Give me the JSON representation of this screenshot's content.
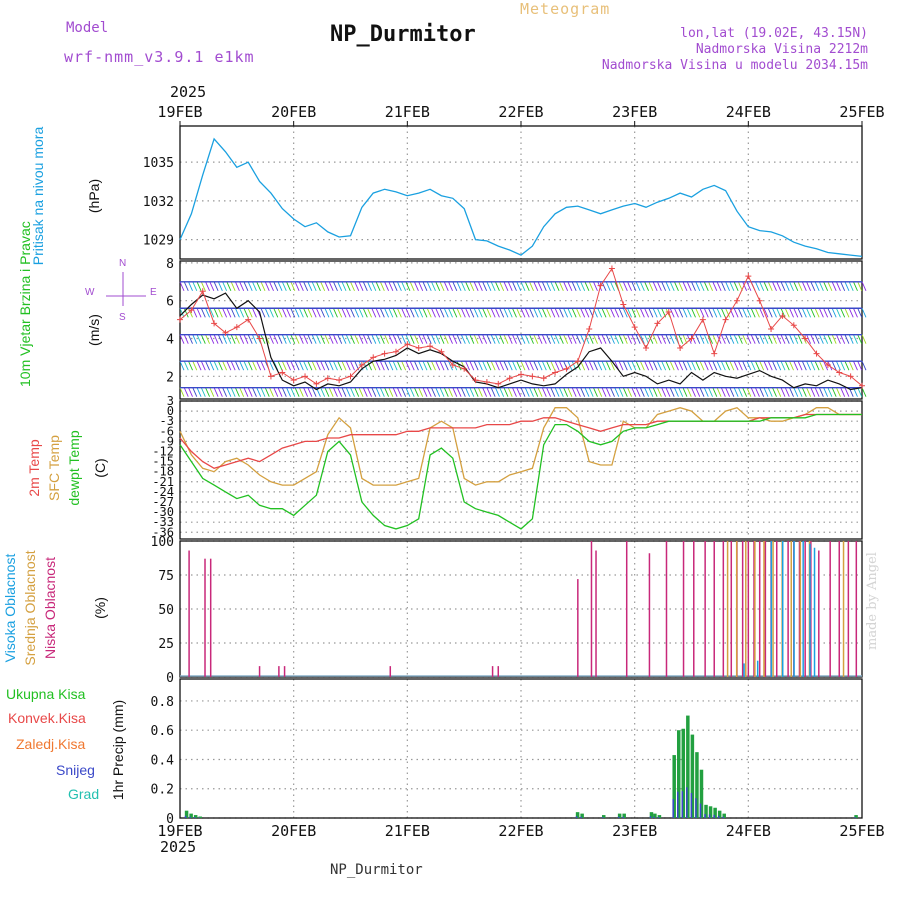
{
  "header": {
    "title": "NP_Durmitor",
    "meteogram": "Meteogram",
    "model_label": "Model",
    "model_name": "wrf-nmm_v3.9.1 e1km",
    "loc_line1": "lon,lat (19.02E, 43.15N)",
    "loc_line2": "Nadmorska Visina 2212m",
    "loc_line3": "Nadmorska Visina u modelu 2034.15m",
    "year_top": "2025",
    "year_bottom": "2025",
    "footer": "NP_Durmitor",
    "credit": "made by Angel"
  },
  "colors": {
    "pressure": "#1aa0e0",
    "temp2m": "#e84848",
    "sfc_temp": "#d4a040",
    "dewpoint": "#22c022",
    "high_cloud": "#1aa0e0",
    "mid_cloud": "#d4a040",
    "low_cloud": "#c8287a",
    "precip_total": "#22a040",
    "snow": "#3a48c8",
    "wind_speed": "#111111",
    "gust": "#e84848",
    "violet": "#a24cd0"
  },
  "chart_data": [
    {
      "type": "line",
      "panel": "pressure",
      "ylabel": "Pritisak na nivou mora",
      "units": "(hPa)",
      "yticks": [
        1029,
        1032,
        1035
      ],
      "ylim": [
        1027.5,
        1037.8
      ],
      "x_categories": [
        "19FEB",
        "20FEB",
        "21FEB",
        "22FEB",
        "23FEB",
        "24FEB",
        "25FEB"
      ],
      "x": [
        0,
        0.1,
        0.2,
        0.3,
        0.4,
        0.5,
        0.6,
        0.7,
        0.8,
        0.9,
        1.0,
        1.1,
        1.2,
        1.3,
        1.4,
        1.5,
        1.6,
        1.7,
        1.8,
        1.9,
        2.0,
        2.1,
        2.2,
        2.3,
        2.4,
        2.5,
        2.6,
        2.7,
        2.8,
        2.9,
        3.0,
        3.1,
        3.2,
        3.3,
        3.4,
        3.5,
        3.6,
        3.7,
        3.8,
        3.9,
        4.0,
        4.1,
        4.2,
        4.3,
        4.4,
        4.5,
        4.6,
        4.7,
        4.8,
        4.9,
        5.0,
        5.1,
        5.2,
        5.3,
        5.4,
        5.5,
        5.6,
        5.7,
        5.8,
        5.9,
        6.0
      ],
      "values": [
        1029,
        1031,
        1034,
        1036.8,
        1035.8,
        1034.6,
        1035,
        1033.5,
        1032.6,
        1031.4,
        1030.6,
        1030.0,
        1030.3,
        1029.6,
        1029.2,
        1029.3,
        1031.5,
        1032.6,
        1032.9,
        1032.7,
        1032.4,
        1032.6,
        1032.9,
        1032.4,
        1032.2,
        1031.4,
        1029.0,
        1028.9,
        1028.5,
        1028.2,
        1027.8,
        1028.5,
        1030.0,
        1031.0,
        1031.5,
        1031.6,
        1031.3,
        1031.0,
        1031.3,
        1031.6,
        1031.8,
        1031.5,
        1031.9,
        1032.2,
        1032.6,
        1032.3,
        1032.9,
        1033.2,
        1032.8,
        1031.2,
        1030.0,
        1029.7,
        1029.6,
        1029.3,
        1028.8,
        1028.5,
        1028.3,
        1028.0,
        1027.9,
        1027.8,
        1027.7
      ]
    },
    {
      "type": "line",
      "panel": "wind",
      "ylabel": "10m Vjetar Brzina i Pravac",
      "units": "(m/s)",
      "compass": {
        "n": "N",
        "s": "S",
        "w": "W",
        "e": "E"
      },
      "yticks": [
        2,
        4,
        6,
        8
      ],
      "ylim": [
        0.8,
        8.1
      ],
      "x": [
        0,
        0.1,
        0.2,
        0.3,
        0.4,
        0.5,
        0.6,
        0.7,
        0.8,
        0.9,
        1.0,
        1.1,
        1.2,
        1.3,
        1.4,
        1.5,
        1.6,
        1.7,
        1.8,
        1.9,
        2.0,
        2.1,
        2.2,
        2.3,
        2.4,
        2.5,
        2.6,
        2.7,
        2.8,
        2.9,
        3.0,
        3.1,
        3.2,
        3.3,
        3.4,
        3.5,
        3.6,
        3.7,
        3.8,
        3.9,
        4.0,
        4.1,
        4.2,
        4.3,
        4.4,
        4.5,
        4.6,
        4.7,
        4.8,
        4.9,
        5.0,
        5.1,
        5.2,
        5.3,
        5.4,
        5.5,
        5.6,
        5.7,
        5.8,
        5.9,
        6.0
      ],
      "series": [
        {
          "role": "speed",
          "values": [
            5.2,
            5.8,
            6.3,
            6.1,
            6.4,
            5.6,
            6.0,
            5.4,
            3.0,
            1.8,
            1.5,
            1.7,
            1.3,
            1.6,
            1.5,
            1.7,
            2.4,
            2.8,
            2.9,
            3.1,
            3.5,
            3.2,
            3.4,
            3.2,
            2.8,
            2.5,
            1.7,
            1.6,
            1.4,
            1.6,
            1.8,
            1.6,
            1.5,
            1.6,
            2.1,
            2.5,
            3.3,
            3.5,
            2.8,
            2.0,
            2.2,
            2.0,
            1.6,
            1.8,
            1.6,
            2.2,
            1.8,
            2.2,
            2.0,
            1.9,
            2.1,
            2.3,
            2.0,
            1.8,
            1.4,
            1.6,
            1.5,
            1.8,
            1.6,
            1.3,
            1.4
          ]
        },
        {
          "role": "gust",
          "values": [
            5.0,
            5.5,
            6.5,
            4.8,
            4.3,
            4.6,
            5.0,
            4.0,
            2.0,
            2.2,
            1.8,
            2.0,
            1.6,
            1.9,
            1.8,
            2.0,
            2.6,
            3.0,
            3.2,
            3.3,
            3.7,
            3.5,
            3.6,
            3.3,
            2.6,
            2.4,
            1.8,
            1.7,
            1.6,
            1.9,
            2.1,
            2.0,
            1.9,
            2.2,
            2.4,
            2.8,
            4.5,
            6.8,
            7.7,
            5.8,
            4.6,
            3.5,
            4.8,
            5.4,
            3.5,
            4.0,
            5.0,
            3.2,
            5.0,
            6.0,
            7.3,
            6.0,
            4.5,
            5.2,
            4.7,
            4.0,
            3.2,
            2.6,
            2.2,
            2.0,
            1.5
          ]
        }
      ]
    },
    {
      "type": "line",
      "panel": "temperature",
      "ylabel1": "2m Temp",
      "ylabel2": "SFC Temp",
      "ylabel3": "dewpt Temp",
      "units": "(C)",
      "yticks": [
        -36,
        -33,
        -30,
        -27,
        -24,
        -21,
        -18,
        -15,
        -12,
        -9,
        -6,
        -3,
        0,
        3
      ],
      "ylim": [
        -38,
        3
      ],
      "x": [
        0,
        0.1,
        0.2,
        0.3,
        0.4,
        0.5,
        0.6,
        0.7,
        0.8,
        0.9,
        1.0,
        1.1,
        1.2,
        1.3,
        1.4,
        1.5,
        1.6,
        1.7,
        1.8,
        1.9,
        2.0,
        2.1,
        2.2,
        2.3,
        2.4,
        2.5,
        2.6,
        2.7,
        2.8,
        2.9,
        3.0,
        3.1,
        3.2,
        3.3,
        3.4,
        3.5,
        3.6,
        3.7,
        3.8,
        3.9,
        4.0,
        4.1,
        4.2,
        4.3,
        4.4,
        4.5,
        4.6,
        4.7,
        4.8,
        4.9,
        5.0,
        5.1,
        5.2,
        5.3,
        5.4,
        5.5,
        5.6,
        5.7,
        5.8,
        5.9,
        6.0
      ],
      "series": [
        {
          "role": "2m",
          "values": [
            -8,
            -12,
            -15,
            -17,
            -16,
            -15,
            -14,
            -15,
            -13,
            -11,
            -10,
            -9,
            -9,
            -8,
            -8,
            -7,
            -7,
            -7,
            -7,
            -7,
            -6,
            -6,
            -5,
            -5,
            -5,
            -5,
            -5,
            -4,
            -4,
            -4,
            -3,
            -3,
            -2,
            -2,
            -3,
            -4,
            -5,
            -6,
            -5,
            -4,
            -4,
            -4,
            -3,
            -3,
            -3,
            -3,
            -3,
            -3,
            -3,
            -3,
            -3,
            -2,
            -2,
            -2,
            -2,
            -1,
            -1,
            -1,
            -1,
            -1,
            -1
          ]
        },
        {
          "role": "sfc",
          "values": [
            -6,
            -13,
            -17,
            -18,
            -15,
            -14,
            -16,
            -19,
            -21,
            -22,
            -22,
            -20,
            -18,
            -7,
            -2,
            -5,
            -20,
            -22,
            -22,
            -22,
            -21,
            -20,
            -5,
            -3,
            -5,
            -20,
            -22,
            -21,
            -21,
            -19,
            -18,
            -17,
            -5,
            1,
            1,
            -2,
            -15,
            -16,
            -16,
            -3,
            -5,
            -5,
            -1,
            0,
            1,
            0,
            -3,
            -3,
            0,
            1,
            -2,
            -2,
            -3,
            -3,
            -2,
            -1,
            1,
            1,
            -1,
            -1,
            -1
          ]
        },
        {
          "role": "dewpt",
          "values": [
            -10,
            -15,
            -20,
            -22,
            -24,
            -26,
            -25,
            -28,
            -29,
            -29,
            -31,
            -28,
            -25,
            -12,
            -9,
            -13,
            -27,
            -31,
            -34,
            -35,
            -34,
            -32,
            -13,
            -11,
            -14,
            -27,
            -29,
            -30,
            -31,
            -33,
            -35,
            -32,
            -10,
            -4,
            -4,
            -6,
            -9,
            -10,
            -9,
            -6,
            -5,
            -5,
            -4,
            -3,
            -3,
            -3,
            -3,
            -3,
            -3,
            -3,
            -3,
            -3,
            -2,
            -2,
            -2,
            -2,
            -1,
            -1,
            -1,
            -1,
            -1
          ]
        }
      ]
    },
    {
      "type": "bar",
      "panel": "clouds",
      "ylabel1": "Visoka Oblacnost",
      "ylabel2": "Srednja Oblacnost",
      "ylabel3": "Niska Oblacnost",
      "units": "(%)",
      "yticks": [
        0,
        25,
        50,
        75,
        100
      ],
      "ylim": [
        0,
        100
      ],
      "low": [
        [
          0.08,
          93
        ],
        [
          0.22,
          87
        ],
        [
          0.27,
          87
        ],
        [
          0.7,
          8
        ],
        [
          0.87,
          8
        ],
        [
          0.92,
          8
        ],
        [
          1.85,
          8
        ],
        [
          2.75,
          8
        ],
        [
          2.8,
          8
        ],
        [
          3.5,
          72
        ],
        [
          3.62,
          100
        ],
        [
          3.66,
          93
        ],
        [
          3.93,
          100
        ],
        [
          4.13,
          91
        ],
        [
          4.28,
          100
        ],
        [
          4.43,
          100
        ],
        [
          4.52,
          100
        ],
        [
          4.62,
          100
        ],
        [
          4.7,
          100
        ],
        [
          4.78,
          100
        ],
        [
          4.85,
          100
        ],
        [
          4.9,
          100
        ],
        [
          4.95,
          100
        ],
        [
          5.0,
          100
        ],
        [
          5.05,
          100
        ],
        [
          5.1,
          100
        ],
        [
          5.15,
          100
        ],
        [
          5.2,
          100
        ],
        [
          5.25,
          100
        ],
        [
          5.3,
          100
        ],
        [
          5.35,
          100
        ],
        [
          5.4,
          100
        ],
        [
          5.45,
          100
        ],
        [
          5.5,
          100
        ],
        [
          5.55,
          100
        ],
        [
          5.62,
          93
        ],
        [
          5.72,
          100
        ],
        [
          5.8,
          100
        ],
        [
          5.88,
          100
        ],
        [
          5.95,
          100
        ]
      ],
      "mid": [
        [
          4.8,
          100
        ],
        [
          4.88,
          100
        ],
        [
          4.96,
          100
        ],
        [
          5.04,
          100
        ],
        [
          5.12,
          100
        ],
        [
          5.2,
          100
        ],
        [
          5.28,
          100
        ],
        [
          5.36,
          100
        ],
        [
          5.44,
          100
        ],
        [
          5.52,
          100
        ],
        [
          5.82,
          100
        ]
      ],
      "high": [
        [
          4.98,
          10
        ],
        [
          5.1,
          12
        ],
        [
          5.22,
          100
        ],
        [
          5.32,
          100
        ],
        [
          5.42,
          100
        ],
        [
          5.5,
          100
        ],
        [
          5.56,
          98
        ],
        [
          5.6,
          95
        ]
      ]
    },
    {
      "type": "bar",
      "panel": "precip",
      "labels": [
        "Ukupna Kisa",
        "Konvek.Kisa",
        "Zaledj.Kisa",
        "Snijeg",
        "Grad"
      ],
      "ylabel": "1hr Precip (mm)",
      "yticks": [
        0,
        0.2,
        0.4,
        0.6,
        0.8
      ],
      "ylim": [
        0,
        0.95
      ],
      "bars": [
        [
          0.06,
          0.05
        ],
        [
          0.1,
          0.03
        ],
        [
          0.14,
          0.02
        ],
        [
          0.18,
          0.01
        ],
        [
          3.5,
          0.04
        ],
        [
          3.54,
          0.03
        ],
        [
          3.73,
          0.02
        ],
        [
          3.87,
          0.03
        ],
        [
          3.91,
          0.03
        ],
        [
          4.15,
          0.04
        ],
        [
          4.18,
          0.03
        ],
        [
          4.22,
          0.02
        ],
        [
          4.35,
          0.43
        ],
        [
          4.39,
          0.6
        ],
        [
          4.43,
          0.61
        ],
        [
          4.47,
          0.7
        ],
        [
          4.51,
          0.57
        ],
        [
          4.55,
          0.45
        ],
        [
          4.59,
          0.33
        ],
        [
          4.63,
          0.09
        ],
        [
          4.67,
          0.08
        ],
        [
          4.71,
          0.07
        ],
        [
          4.75,
          0.05
        ],
        [
          4.79,
          0.03
        ],
        [
          5.95,
          0.02
        ]
      ]
    }
  ]
}
